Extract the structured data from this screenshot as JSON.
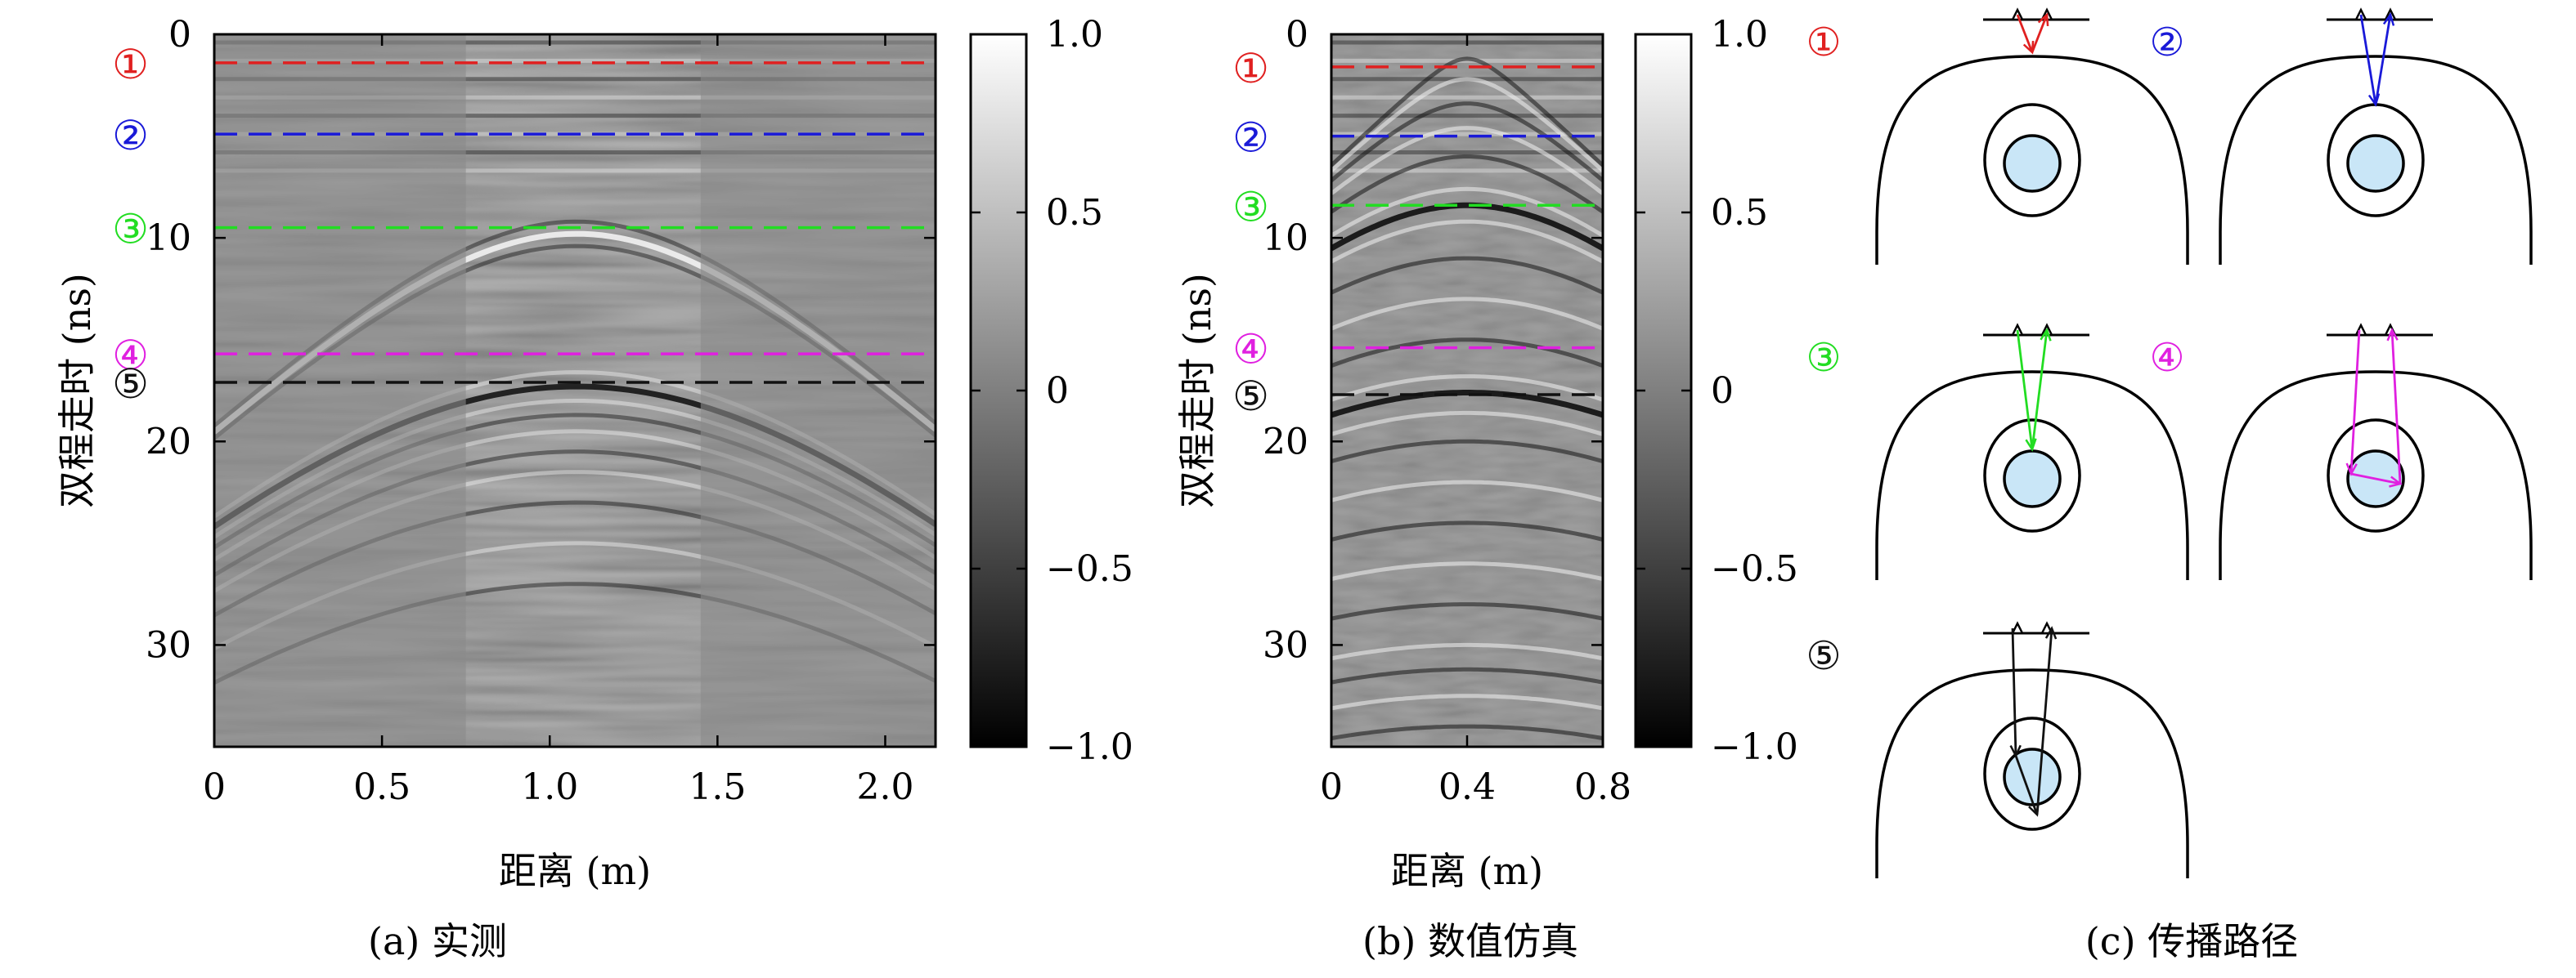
{
  "colors": {
    "marker_1": "#e02020",
    "marker_2": "#1a1ad8",
    "marker_3": "#22dd22",
    "marker_4": "#e020e0",
    "marker_5": "#111111",
    "inclusion_fill": "#c9e6f7",
    "colormap_low": "#000000",
    "colormap_high": "#ffffff"
  },
  "chart_data": [
    {
      "type": "heatmap",
      "panel": "a",
      "caption": "(a) 实测",
      "xlabel": "距离 (m)",
      "ylabel": "双程走时 (ns)",
      "xlim": [
        0,
        2.15
      ],
      "ylim": [
        35,
        0
      ],
      "xticks": [
        0,
        0.5,
        1.0,
        1.5,
        2.0
      ],
      "xtick_labels": [
        "0",
        "0.5",
        "1.0",
        "1.5",
        "2.0"
      ],
      "yticks": [
        0,
        10,
        20,
        30
      ],
      "ytick_labels": [
        "0",
        "10",
        "20",
        "30"
      ],
      "colorbar": {
        "range": [
          -1.0,
          1.0
        ],
        "ticks": [
          1.0,
          0.5,
          0,
          -0.5,
          -1.0
        ],
        "tick_labels": [
          "1.0",
          "0.5",
          "0",
          "−0.5",
          "−1.0"
        ]
      },
      "markers": [
        {
          "label": "①",
          "t": 1.4,
          "color": "#e02020"
        },
        {
          "label": "②",
          "t": 4.9,
          "color": "#1a1ad8"
        },
        {
          "label": "③",
          "t": 9.5,
          "color": "#22dd22"
        },
        {
          "label": "④",
          "t": 15.7,
          "color": "#e020e0"
        },
        {
          "label": "⑤",
          "t": 17.1,
          "color": "#111111"
        }
      ]
    },
    {
      "type": "heatmap",
      "panel": "b",
      "caption": "(b) 数值仿真",
      "xlabel": "距离 (m)",
      "ylabel": "双程走时 (ns)",
      "xlim": [
        0,
        0.8
      ],
      "ylim": [
        35,
        0
      ],
      "xticks": [
        0,
        0.4,
        0.8
      ],
      "xtick_labels": [
        "0",
        "0.4",
        "0.8"
      ],
      "yticks": [
        0,
        10,
        20,
        30
      ],
      "ytick_labels": [
        "0",
        "10",
        "20",
        "30"
      ],
      "colorbar": {
        "range": [
          -1.0,
          1.0
        ],
        "ticks": [
          1.0,
          0.5,
          0,
          -0.5,
          -1.0
        ],
        "tick_labels": [
          "1.0",
          "0.5",
          "0",
          "−0.5",
          "−1.0"
        ]
      },
      "markers": [
        {
          "label": "①",
          "t": 1.6,
          "color": "#e02020"
        },
        {
          "label": "②",
          "t": 5.0,
          "color": "#1a1ad8"
        },
        {
          "label": "③",
          "t": 8.4,
          "color": "#22dd22"
        },
        {
          "label": "④",
          "t": 15.4,
          "color": "#e020e0"
        },
        {
          "label": "⑤",
          "t": 17.7,
          "color": "#111111"
        }
      ]
    }
  ],
  "diagram": {
    "caption": "(c) 传播路径",
    "cells": [
      {
        "label": "①",
        "color": "#e02020"
      },
      {
        "label": "②",
        "color": "#1a1ad8"
      },
      {
        "label": "③",
        "color": "#22dd22"
      },
      {
        "label": "④",
        "color": "#e020e0"
      },
      {
        "label": "⑤",
        "color": "#111111"
      }
    ]
  }
}
